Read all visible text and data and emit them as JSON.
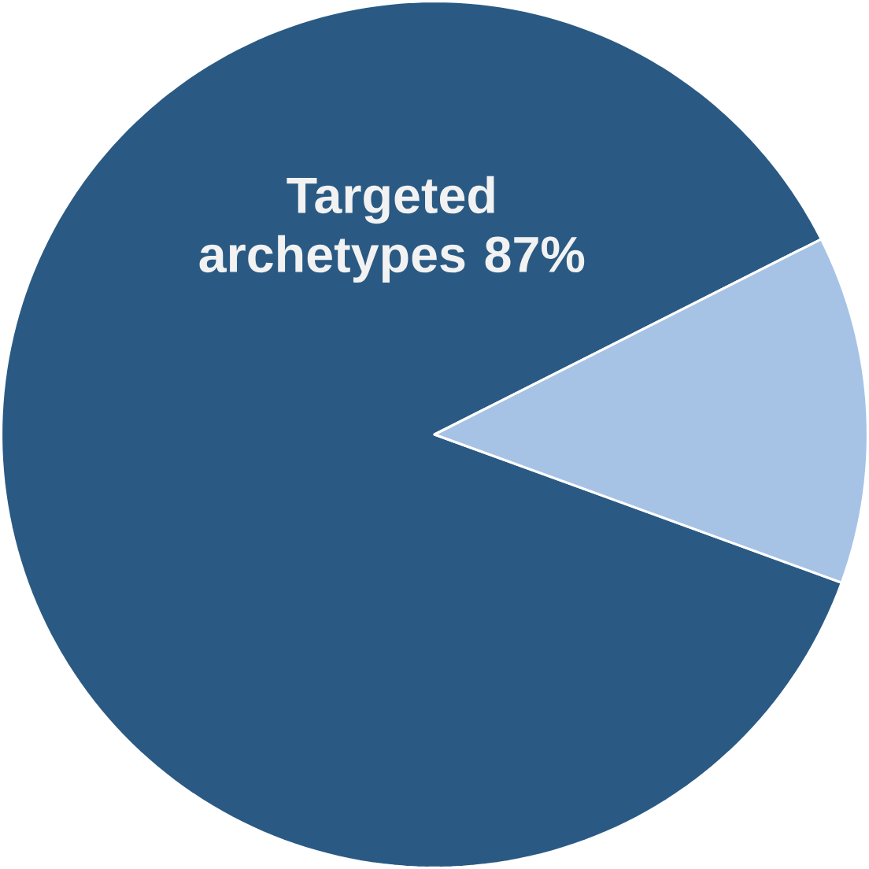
{
  "chart_data": {
    "type": "pie",
    "categories": [
      "Targeted archetypes",
      null
    ],
    "values": [
      87,
      13
    ],
    "value_labels": [
      "87%",
      null
    ],
    "colors": [
      "#2a5a83",
      "#a6c3e6"
    ]
  }
}
